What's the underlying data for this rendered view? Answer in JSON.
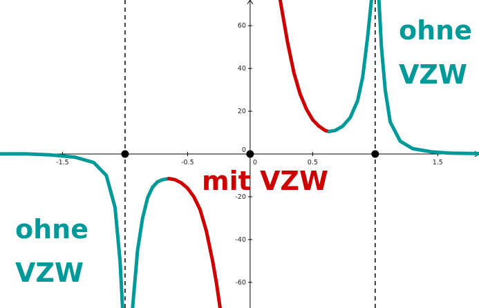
{
  "chart_data": {
    "type": "line",
    "xlim": [
      -2.0,
      1.83
    ],
    "ylim": [
      -72,
      72
    ],
    "grid": false,
    "x_ticks": [
      -1.5,
      -1,
      -0.5,
      0,
      0.5,
      1,
      1.5
    ],
    "x_tick_labels": [
      "-1.5",
      "",
      "-0.5",
      "0",
      "0.5",
      "",
      "1.5"
    ],
    "y_ticks": [
      -60,
      -40,
      -20,
      0,
      20,
      40,
      60
    ],
    "y_tick_labels": [
      "-60",
      "-40",
      "-20",
      "0",
      "20",
      "40",
      "60"
    ],
    "vertical_asymptotes": [
      -1,
      0,
      1
    ],
    "points": [
      {
        "x": -1,
        "y": 0
      },
      {
        "x": 0,
        "y": 0
      },
      {
        "x": 1,
        "y": 0
      }
    ],
    "series": [
      {
        "color": "#009999",
        "x": [
          -2.0,
          -1.8,
          -1.6,
          -1.4,
          -1.25,
          -1.15,
          -1.08,
          -1.04,
          -1.02
        ],
        "y": [
          0.05,
          0.1,
          -0.4,
          -1.5,
          -4,
          -10,
          -25,
          -50,
          -72
        ]
      },
      {
        "color": "#009999",
        "x": [
          -0.94,
          -0.9,
          -0.86,
          -0.82,
          -0.78,
          -0.74,
          -0.7,
          -0.65
        ],
        "y": [
          -72,
          -45,
          -30,
          -20.5,
          -15.5,
          -13,
          -12,
          -11.5
        ]
      },
      {
        "color": "#cc0000",
        "x": [
          -0.65,
          -0.6,
          -0.55,
          -0.5,
          -0.45,
          -0.4,
          -0.35,
          -0.3,
          -0.27,
          -0.24
        ],
        "y": [
          -11.5,
          -12,
          -13.5,
          -16,
          -20,
          -26,
          -36,
          -50,
          -60,
          -72
        ]
      },
      {
        "color": "#cc0000",
        "x": [
          0.24,
          0.27,
          0.3,
          0.35,
          0.4,
          0.45,
          0.5,
          0.55,
          0.6,
          0.63
        ],
        "y": [
          72,
          62,
          52,
          38,
          28,
          21,
          16,
          13,
          11,
          10.5
        ]
      },
      {
        "color": "#009999",
        "x": [
          0.63,
          0.68,
          0.74,
          0.8,
          0.86,
          0.9,
          0.94,
          0.97
        ],
        "y": [
          10.5,
          11,
          13,
          17,
          25,
          36,
          55,
          72
        ]
      },
      {
        "color": "#009999",
        "x": [
          1.03,
          1.05,
          1.08,
          1.12,
          1.2,
          1.3,
          1.45,
          1.6,
          1.83
        ],
        "y": [
          72,
          50,
          30,
          15,
          6,
          2.5,
          1,
          0.4,
          0.2
        ]
      }
    ],
    "annotations": [
      {
        "text": "ohne",
        "color": "#009999"
      },
      {
        "text": "VZW",
        "color": "#009999"
      },
      {
        "text": "mit VZW",
        "color": "#cc0000"
      },
      {
        "text": "ohne",
        "color": "#009999"
      },
      {
        "text": "VZW",
        "color": "#009999"
      }
    ]
  }
}
